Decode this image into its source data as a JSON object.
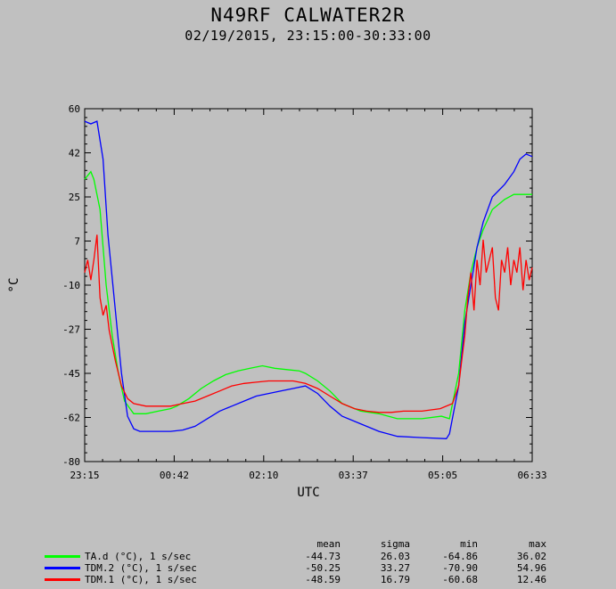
{
  "header": {
    "title": "N49RF CALWATER2R",
    "subtitle": "02/19/2015, 23:15:00-30:33:00"
  },
  "chart_data": {
    "type": "line",
    "title": "N49RF CALWATER2R",
    "subtitle": "02/19/2015, 23:15:00-30:33:00",
    "xlabel": "UTC",
    "ylabel": "°C",
    "x_unit": "hours after 23:15 UTC",
    "xlim": [
      0,
      7.3
    ],
    "ylim": [
      -80,
      60
    ],
    "x_ticks": [
      "23:15",
      "00:42",
      "02:10",
      "03:37",
      "05:05",
      "06:33"
    ],
    "y_ticks": [
      "60",
      "42",
      "25",
      "7",
      "-10",
      "-27",
      "-45",
      "-62",
      "-80"
    ],
    "grid": false,
    "series": [
      {
        "name": "TA.d (°C), 1 s/sec",
        "color": "#00ff00",
        "x": [
          0,
          0.1,
          0.15,
          0.25,
          0.35,
          0.45,
          0.55,
          0.65,
          0.8,
          1.0,
          1.2,
          1.4,
          1.5,
          1.7,
          1.9,
          2.1,
          2.3,
          2.5,
          2.7,
          2.9,
          3.1,
          3.3,
          3.5,
          3.6,
          3.8,
          4.0,
          4.2,
          4.5,
          4.8,
          5.1,
          5.5,
          5.82,
          5.95,
          6.1,
          6.2,
          6.3,
          6.4,
          6.5,
          6.65,
          6.85,
          7.0,
          7.1,
          7.2,
          7.3
        ],
        "y": [
          32,
          35,
          32,
          20,
          -10,
          -30,
          -45,
          -56,
          -61,
          -61,
          -60,
          -59,
          -58,
          -55,
          -51,
          -48,
          -45.5,
          -44,
          -43,
          -42,
          -43,
          -43.5,
          -44,
          -45,
          -48,
          -52,
          -57,
          -60,
          -61,
          -63,
          -63,
          -62,
          -63,
          -45,
          -20,
          -5,
          5,
          12,
          20,
          24,
          26,
          26,
          26,
          26
        ]
      },
      {
        "name": "TDM.2 (°C), 1 s/sec",
        "color": "#0000ff",
        "x": [
          0,
          0.1,
          0.2,
          0.3,
          0.38,
          0.5,
          0.6,
          0.7,
          0.8,
          0.9,
          1.0,
          1.2,
          1.4,
          1.6,
          1.8,
          2.0,
          2.2,
          2.4,
          2.6,
          2.8,
          3.0,
          3.2,
          3.4,
          3.6,
          3.8,
          4.0,
          4.2,
          4.5,
          4.8,
          5.1,
          5.5,
          5.9,
          5.95,
          6.1,
          6.2,
          6.3,
          6.4,
          6.5,
          6.65,
          6.85,
          7.0,
          7.1,
          7.2,
          7.3
        ],
        "y": [
          55,
          54,
          55,
          40,
          10,
          -20,
          -45,
          -62,
          -67,
          -68,
          -68,
          -68,
          -68,
          -67.5,
          -66,
          -63,
          -60,
          -58,
          -56,
          -54,
          -53,
          -52,
          -51,
          -50,
          -53,
          -58,
          -62,
          -65,
          -68,
          -70,
          -70.5,
          -70.9,
          -69,
          -50,
          -25,
          -10,
          5,
          15,
          25,
          30,
          35,
          40,
          42,
          41
        ]
      },
      {
        "name": "TDM.1 (°C), 1 s/sec",
        "color": "#ff0000",
        "x": [
          0,
          0.05,
          0.1,
          0.15,
          0.2,
          0.25,
          0.3,
          0.35,
          0.4,
          0.5,
          0.6,
          0.7,
          0.8,
          1.0,
          1.2,
          1.4,
          1.6,
          1.8,
          2.0,
          2.2,
          2.4,
          2.6,
          2.8,
          3.0,
          3.2,
          3.4,
          3.6,
          3.8,
          4.0,
          4.2,
          4.4,
          4.6,
          4.8,
          5.0,
          5.2,
          5.5,
          5.8,
          6.0,
          6.1,
          6.15,
          6.2,
          6.25,
          6.3,
          6.35,
          6.4,
          6.45,
          6.5,
          6.55,
          6.6,
          6.65,
          6.7,
          6.75,
          6.8,
          6.85,
          6.9,
          6.95,
          7.0,
          7.05,
          7.1,
          7.15,
          7.2,
          7.25,
          7.3
        ],
        "y": [
          -5,
          0,
          -8,
          0,
          10,
          -15,
          -22,
          -18,
          -28,
          -40,
          -50,
          -55,
          -57,
          -58,
          -58,
          -58,
          -57,
          -56,
          -54,
          -52,
          -50,
          -49,
          -48.5,
          -48,
          -48,
          -48,
          -49,
          -51,
          -54,
          -57,
          -59,
          -60,
          -60.5,
          -60.5,
          -60,
          -60,
          -59,
          -57,
          -50,
          -40,
          -30,
          -15,
          -5,
          -20,
          0,
          -10,
          8,
          -5,
          0,
          5,
          -15,
          -20,
          0,
          -5,
          5,
          -10,
          0,
          -5,
          5,
          -12,
          0,
          -8,
          -3
        ]
      }
    ],
    "stats": {
      "headers": [
        "mean",
        "sigma",
        "min",
        "max"
      ],
      "rows": [
        [
          "-44.73",
          "26.03",
          "-64.86",
          "36.02"
        ],
        [
          "-50.25",
          "33.27",
          "-70.90",
          "54.96"
        ],
        [
          "-48.59",
          "16.79",
          "-60.68",
          "12.46"
        ]
      ]
    }
  },
  "legend": {
    "headers": {
      "mean": "mean",
      "sigma": "sigma",
      "min": "min",
      "max": "max"
    },
    "rows": [
      {
        "label": "TA.d (°C), 1 s/sec",
        "color": "#00ff00",
        "mean": "-44.73",
        "sigma": "26.03",
        "min": "-64.86",
        "max": "36.02"
      },
      {
        "label": "TDM.2 (°C), 1 s/sec",
        "color": "#0000ff",
        "mean": "-50.25",
        "sigma": "33.27",
        "min": "-70.90",
        "max": "54.96"
      },
      {
        "label": "TDM.1 (°C), 1 s/sec",
        "color": "#ff0000",
        "mean": "-48.59",
        "sigma": "16.79",
        "min": "-60.68",
        "max": "12.46"
      }
    ]
  }
}
